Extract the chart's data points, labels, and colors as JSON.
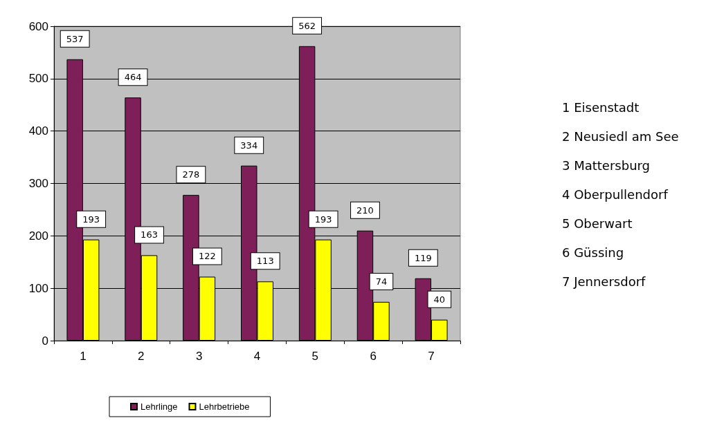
{
  "chart_data": {
    "type": "bar",
    "categories": [
      "1",
      "2",
      "3",
      "4",
      "5",
      "6",
      "7"
    ],
    "series": [
      {
        "name": "Lehrlinge",
        "color": "#7f1f5a",
        "values": [
          537,
          464,
          278,
          334,
          562,
          210,
          119
        ]
      },
      {
        "name": "Lehrbetriebe",
        "color": "#ffff00",
        "values": [
          193,
          163,
          122,
          113,
          193,
          74,
          40
        ]
      }
    ],
    "ylim": [
      0,
      600
    ],
    "yticks": [
      0,
      100,
      200,
      300,
      400,
      500,
      600
    ],
    "grid": "y",
    "legend": "bottom",
    "data_labels": true,
    "annotations": [
      "1 Eisenstadt",
      "2 Neusiedl am See",
      "3 Mattersburg",
      "4 Oberpullendorf",
      "5 Oberwart",
      "6 Güssing",
      "7 Jennersdorf"
    ]
  }
}
